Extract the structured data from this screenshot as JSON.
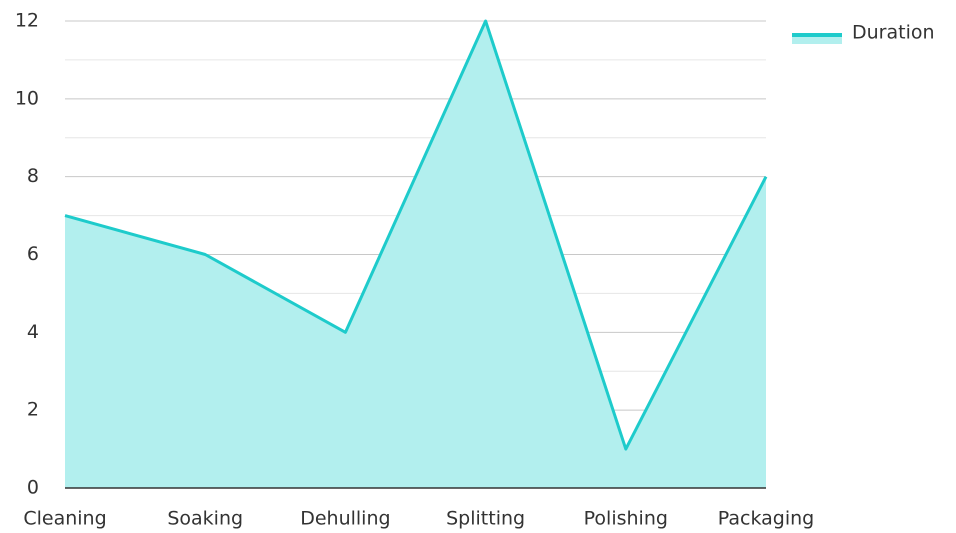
{
  "chart_data": {
    "type": "area",
    "categories": [
      "Cleaning",
      "Soaking",
      "Dehulling",
      "Splitting",
      "Polishing",
      "Packaging"
    ],
    "series": [
      {
        "name": "Duration",
        "color": "#1ecbcb",
        "fill": "#b2efee",
        "values": [
          7,
          6,
          4,
          12,
          1,
          8
        ]
      }
    ],
    "ylim": [
      0,
      12
    ],
    "yticks": [
      0,
      2,
      4,
      6,
      8,
      10,
      12
    ],
    "grid": true,
    "legend": "top-right"
  }
}
